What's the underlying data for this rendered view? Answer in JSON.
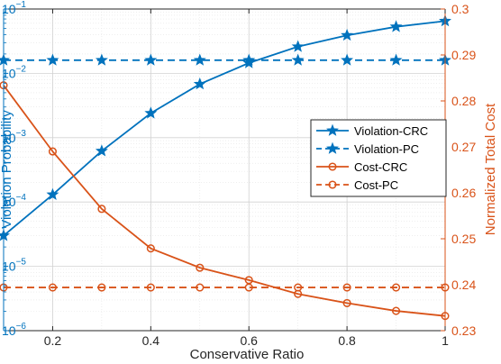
{
  "chart_data": {
    "type": "line",
    "title": "",
    "xlabel": "Conservative Ratio",
    "ylabel_left": "Violation Probability",
    "ylabel_right": "Normalized Total Cost",
    "xlim": [
      0.1,
      1.0
    ],
    "ylim_left": [
      1e-06,
      0.1
    ],
    "ylim_right": [
      0.23,
      0.3
    ],
    "yscale_left": "log",
    "grid": true,
    "legend_position": "center-right",
    "x_ticks": [
      "0.2",
      "0.4",
      "0.6",
      "0.8",
      "1"
    ],
    "x_tick_values": [
      0.2,
      0.4,
      0.6,
      0.8,
      1.0
    ],
    "left_tick_exponents": [
      -6,
      -5,
      -4,
      -3,
      -2,
      -1
    ],
    "left_tick_base": "10",
    "right_ticks": [
      "0.23",
      "0.24",
      "0.25",
      "0.26",
      "0.27",
      "0.28",
      "0.29",
      "0.3"
    ],
    "right_tick_values": [
      0.23,
      0.24,
      0.25,
      0.26,
      0.27,
      0.28,
      0.29,
      0.3
    ],
    "colors": {
      "left_axis": "#0072BD",
      "right_axis": "#D95319"
    },
    "x": [
      0.1,
      0.2,
      0.3,
      0.4,
      0.5,
      0.6,
      0.7,
      0.8,
      0.9,
      1.0
    ],
    "series": [
      {
        "name": "Violation-CRC",
        "axis": "left",
        "marker": "star",
        "dash": "solid",
        "color": "#0072BD",
        "values": [
          3e-05,
          0.00013,
          0.00062,
          0.0024,
          0.0068,
          0.0145,
          0.026,
          0.039,
          0.053,
          0.065
        ]
      },
      {
        "name": "Violation-PC",
        "axis": "left",
        "marker": "star",
        "dash": "dashed",
        "color": "#0072BD",
        "values": [
          0.016,
          0.016,
          0.016,
          0.016,
          0.016,
          0.016,
          0.016,
          0.016,
          0.016,
          0.016
        ]
      },
      {
        "name": "Cost-CRC",
        "axis": "right",
        "marker": "circle",
        "dash": "solid",
        "color": "#D95319",
        "values": [
          0.2834,
          0.269,
          0.2565,
          0.2479,
          0.2437,
          0.241,
          0.238,
          0.236,
          0.2343,
          0.2332
        ]
      },
      {
        "name": "Cost-PC",
        "axis": "right",
        "marker": "circle",
        "dash": "dashed",
        "color": "#D95319",
        "values": [
          0.2394,
          0.2394,
          0.2394,
          0.2394,
          0.2394,
          0.2394,
          0.2394,
          0.2394,
          0.2394,
          0.2394
        ]
      }
    ]
  }
}
